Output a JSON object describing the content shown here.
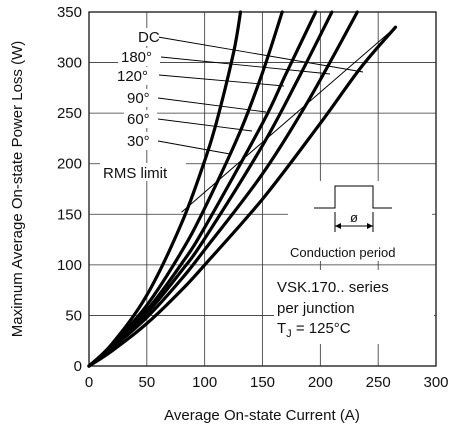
{
  "chart_data": {
    "type": "line",
    "title": "",
    "xlabel": "Average On-state Current (A)",
    "ylabel": "Maximum Average On-state Power Loss (W)",
    "xlim": [
      0,
      300
    ],
    "ylim": [
      0,
      350
    ],
    "x_ticks": [
      "0",
      "50",
      "100",
      "150",
      "200",
      "250",
      "300"
    ],
    "y_ticks": [
      "0",
      "50",
      "100",
      "150",
      "200",
      "250",
      "300",
      "350"
    ],
    "grid": true,
    "series": [
      {
        "name": "DC",
        "label_x": 240,
        "label_y": 290,
        "x": [
          0,
          20,
          50,
          80,
          100,
          150,
          200,
          235,
          265
        ],
        "y": [
          0,
          15,
          42,
          75,
          100,
          165,
          240,
          295,
          335
        ]
      },
      {
        "name": "180°",
        "x": [
          0,
          20,
          50,
          80,
          100,
          150,
          190,
          232
        ],
        "y": [
          0,
          18,
          48,
          86,
          115,
          190,
          263,
          350
        ]
      },
      {
        "name": "120°",
        "x": [
          0,
          20,
          50,
          80,
          100,
          150,
          180,
          210
        ],
        "y": [
          0,
          19,
          52,
          94,
          126,
          218,
          282,
          350
        ]
      },
      {
        "name": "90°",
        "x": [
          0,
          20,
          50,
          80,
          100,
          150,
          170,
          196
        ],
        "y": [
          0,
          20,
          55,
          101,
          137,
          240,
          288,
          350
        ]
      },
      {
        "name": "60°",
        "x": [
          0,
          20,
          50,
          80,
          100,
          130,
          150,
          167
        ],
        "y": [
          0,
          21,
          60,
          113,
          156,
          230,
          290,
          350
        ]
      },
      {
        "name": "30°",
        "x": [
          0,
          20,
          50,
          80,
          100,
          110,
          125,
          131
        ],
        "y": [
          0,
          22,
          70,
          141,
          203,
          240,
          310,
          350
        ]
      }
    ],
    "rms_limit": {
      "label": "RMS limit",
      "x": [
        80,
        265
      ],
      "y": [
        152,
        335
      ]
    },
    "legend_labels": [
      "DC",
      "180°",
      "120°",
      "90°",
      "60°",
      "30°"
    ],
    "annotations": {
      "conduction": "Conduction period",
      "phi": "ø",
      "series_line1": "VSK.170..  series",
      "series_line2": "per  junction",
      "tj_prefix": "T",
      "tj_sub": "J",
      "tj_suffix": " = 125°C"
    }
  }
}
